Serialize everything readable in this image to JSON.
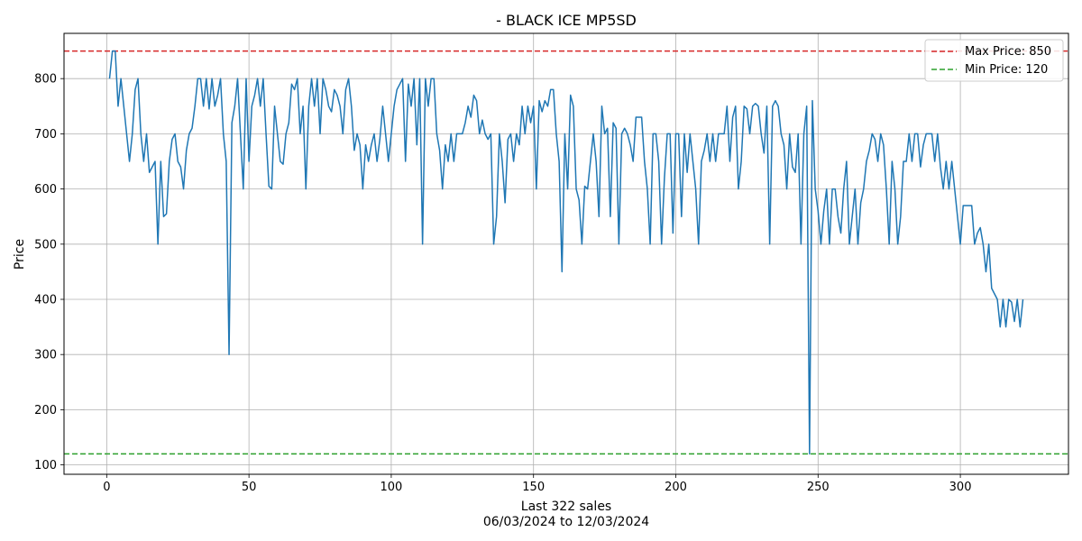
{
  "chart_data": {
    "type": "line",
    "title": "- BLACK ICE MP5SD",
    "xlabel": "Last 322 sales",
    "xlabel_sub": "06/03/2024 to 12/03/2024",
    "ylabel": "Price",
    "xlim": [
      -15,
      338
    ],
    "ylim": [
      83,
      882
    ],
    "xticks": [
      0,
      50,
      100,
      150,
      200,
      250,
      300
    ],
    "yticks": [
      100,
      200,
      300,
      400,
      500,
      600,
      700,
      800
    ],
    "grid": true,
    "legend_position": "top-right",
    "reference_lines": [
      {
        "name": "Max Price: 850",
        "value": 850,
        "color": "#d62728",
        "style": "dashed"
      },
      {
        "name": "Min Price: 120",
        "value": 120,
        "color": "#2ca02c",
        "style": "dashed"
      }
    ],
    "series": [
      {
        "color": "#1f77b4",
        "values": [
          800,
          850,
          850,
          750,
          800,
          750,
          700,
          650,
          700,
          780,
          800,
          700,
          650,
          700,
          630,
          640,
          650,
          500,
          650,
          550,
          555,
          650,
          690,
          700,
          650,
          640,
          600,
          670,
          700,
          710,
          750,
          800,
          800,
          750,
          800,
          745,
          800,
          750,
          770,
          800,
          700,
          650,
          300,
          720,
          750,
          800,
          700,
          600,
          800,
          650,
          750,
          770,
          800,
          750,
          800,
          700,
          605,
          600,
          750,
          700,
          650,
          645,
          700,
          720,
          790,
          780,
          800,
          700,
          750,
          600,
          750,
          800,
          750,
          800,
          700,
          800,
          780,
          750,
          740,
          780,
          770,
          750,
          700,
          780,
          800,
          750,
          670,
          700,
          680,
          600,
          680,
          650,
          680,
          700,
          650,
          690,
          750,
          700,
          650,
          700,
          750,
          780,
          790,
          800,
          650,
          790,
          750,
          800,
          680,
          800,
          500,
          800,
          750,
          800,
          800,
          700,
          670,
          600,
          680,
          650,
          700,
          650,
          700,
          700,
          700,
          720,
          750,
          730,
          770,
          760,
          700,
          725,
          700,
          690,
          700,
          500,
          550,
          700,
          650,
          575,
          690,
          700,
          650,
          700,
          680,
          750,
          700,
          750,
          720,
          750,
          600,
          760,
          740,
          760,
          750,
          780,
          780,
          700,
          650,
          450,
          700,
          600,
          770,
          750,
          600,
          580,
          500,
          605,
          600,
          650,
          700,
          650,
          550,
          750,
          700,
          710,
          550,
          720,
          710,
          500,
          700,
          710,
          700,
          680,
          650,
          730,
          730,
          730,
          650,
          600,
          500,
          700,
          700,
          650,
          500,
          620,
          700,
          700,
          520,
          700,
          700,
          550,
          700,
          630,
          700,
          650,
          600,
          500,
          650,
          670,
          700,
          650,
          700,
          650,
          700,
          700,
          700,
          750,
          650,
          730,
          750,
          600,
          650,
          750,
          745,
          700,
          750,
          755,
          750,
          700,
          665,
          750,
          500,
          750,
          760,
          750,
          700,
          680,
          600,
          700,
          640,
          630,
          700,
          500,
          700,
          750,
          120,
          760,
          600,
          560,
          500,
          560,
          600,
          500,
          600,
          600,
          550,
          520,
          600,
          650,
          500,
          550,
          600,
          500,
          575,
          600,
          650,
          670,
          700,
          690,
          650,
          700,
          680,
          600,
          500,
          650,
          600,
          500,
          550,
          650,
          650,
          700,
          650,
          700,
          700,
          640,
          680,
          700,
          700,
          700,
          650,
          700,
          640,
          600,
          650,
          600,
          650,
          600,
          550,
          500,
          570,
          570,
          570,
          570,
          500,
          520,
          530,
          500,
          450,
          500,
          420,
          410,
          400,
          350,
          400,
          350,
          400,
          395,
          360,
          400,
          350,
          400
        ]
      }
    ]
  }
}
